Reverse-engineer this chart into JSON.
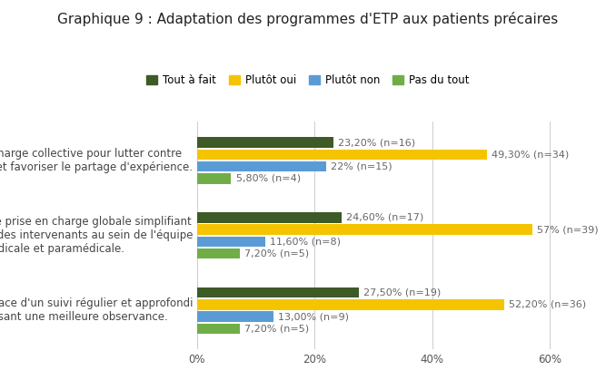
{
  "title": "Graphique 9 : Adaptation des programmes d'ETP aux patients précaires",
  "categories": [
    "Prise en charge collective pour lutter contre\nl'isolement et favoriser le partage d'expérience.",
    "Possibilité d'une prise en charge globale simplifiant\nla coordination des intervenants au sein de l'équipe\nmédicale et paramédicale.",
    "Mise en place d'un suivi régulier et approfondi\nfavorisant une meilleure observance."
  ],
  "legend_labels": [
    "Tout à fait",
    "Plutôt oui",
    "Plutôt non",
    "Pas du tout"
  ],
  "colors": [
    "#3d5a27",
    "#f5c400",
    "#5b9bd5",
    "#70ad47"
  ],
  "data": [
    [
      23.2,
      49.3,
      22.0,
      5.8
    ],
    [
      24.6,
      57.0,
      11.6,
      7.2
    ],
    [
      27.5,
      52.2,
      13.0,
      7.2
    ]
  ],
  "labels": [
    [
      "23,20% (n=16)",
      "49,30% (n=34)",
      "22% (n=15)",
      "5,80% (n=4)"
    ],
    [
      "24,60% (n=17)",
      "57% (n=39)",
      "11,60% (n=8)",
      "7,20% (n=5)"
    ],
    [
      "27,50% (n=19)",
      "52,20% (n=36)",
      "13,00% (n=9)",
      "7,20% (n=5)"
    ]
  ],
  "xlim": [
    0,
    65
  ],
  "xticks": [
    0,
    20,
    40,
    60
  ],
  "xticklabels": [
    "0%",
    "20%",
    "40%",
    "60%"
  ],
  "background_color": "#ffffff",
  "title_fontsize": 11,
  "label_fontsize": 8,
  "tick_fontsize": 8.5,
  "legend_fontsize": 8.5
}
